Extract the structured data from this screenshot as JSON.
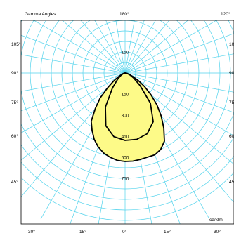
{
  "chart_data": {
    "type": "polar",
    "title": "Gamma Angles",
    "unit": "cd/klm",
    "rlim": [
      0,
      750
    ],
    "radial_ticks": [
      150,
      300,
      450,
      600,
      750
    ],
    "radial_tick_labels": [
      "150",
      "300",
      "450",
      "600",
      "750"
    ],
    "top_tick_label": "150",
    "angle_labels": {
      "top_center": "180°",
      "top_right": "120°",
      "left": [
        "105°",
        "90°",
        "75°",
        "60°",
        "45°"
      ],
      "right": [
        "10",
        "90",
        "75",
        "60",
        "45"
      ],
      "bottom": [
        "30°",
        "15°",
        "0°",
        "15°",
        "30°"
      ]
    },
    "grid_angle_step_deg": 10,
    "colors": {
      "grid": "#52d3ec",
      "fill": "#fdfa88",
      "curve": "#000000"
    },
    "series": [
      {
        "theta_deg": [
          -90,
          -80,
          -70,
          -60,
          -55,
          -50,
          -45,
          -40,
          -35,
          -30,
          -25,
          -20,
          -15,
          -10,
          -5,
          0,
          5,
          10,
          15,
          20,
          25,
          30,
          35,
          40,
          45,
          50,
          55,
          60,
          65,
          70,
          80,
          90
        ],
        "r": [
          0,
          5,
          22,
          60,
          100,
          160,
          250,
          330,
          420,
          470,
          520,
          560,
          590,
          610,
          625,
          630,
          630,
          625,
          620,
          620,
          600,
          560,
          480,
          400,
          320,
          240,
          170,
          110,
          65,
          35,
          10,
          0
        ]
      },
      {
        "theta_deg": [
          -90,
          -80,
          -70,
          -60,
          -50,
          -40,
          -30,
          -20,
          -10,
          0,
          10,
          20,
          30,
          40,
          50,
          60,
          70,
          80,
          90
        ],
        "r": [
          0,
          5,
          15,
          35,
          70,
          140,
          280,
          400,
          460,
          480,
          480,
          460,
          400,
          280,
          140,
          70,
          35,
          15,
          0
        ]
      }
    ]
  }
}
